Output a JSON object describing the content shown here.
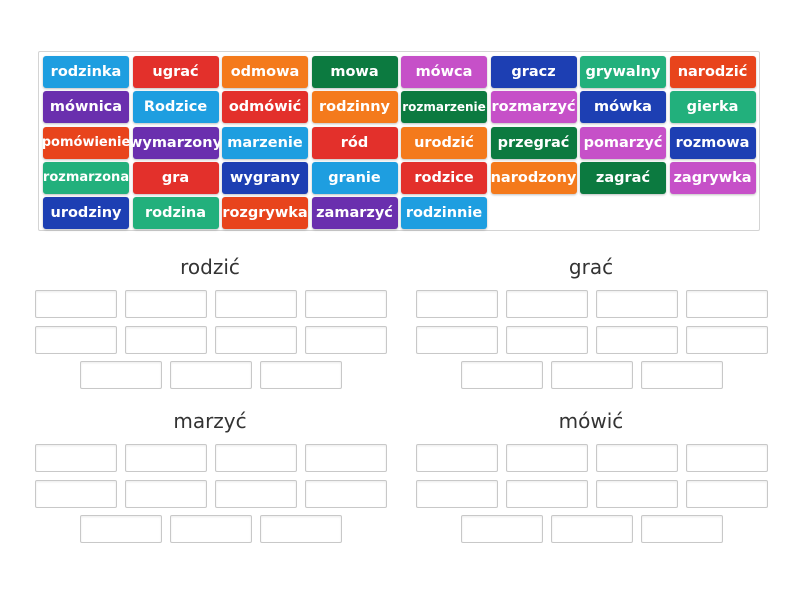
{
  "tiles": [
    {
      "text": "rodzinka",
      "color": "#1e9ee0"
    },
    {
      "text": "ugrać",
      "color": "#e3302b"
    },
    {
      "text": "odmowa",
      "color": "#f47a1c"
    },
    {
      "text": "mowa",
      "color": "#0c7a40"
    },
    {
      "text": "mówca",
      "color": "#c650c8"
    },
    {
      "text": "gracz",
      "color": "#1d3fb3"
    },
    {
      "text": "grywalny",
      "color": "#22b07c"
    },
    {
      "text": "narodzić",
      "color": "#e8441c"
    },
    {
      "text": "mównica",
      "color": "#6a2fae"
    },
    {
      "text": "Rodzice",
      "color": "#1e9ee0"
    },
    {
      "text": "odmówić",
      "color": "#e3302b"
    },
    {
      "text": "rodzinny",
      "color": "#f47a1c"
    },
    {
      "text": "rozmarzenie",
      "color": "#0c7a40"
    },
    {
      "text": "rozmarzyć",
      "color": "#c650c8"
    },
    {
      "text": "mówka",
      "color": "#1d3fb3"
    },
    {
      "text": "gierka",
      "color": "#22b07c"
    },
    {
      "text": "pomówienie",
      "color": "#e8441c"
    },
    {
      "text": "wymarzony",
      "color": "#6a2fae"
    },
    {
      "text": "marzenie",
      "color": "#1e9ee0"
    },
    {
      "text": "ród",
      "color": "#e3302b"
    },
    {
      "text": "urodzić",
      "color": "#f47a1c"
    },
    {
      "text": "przegrać",
      "color": "#0c7a40"
    },
    {
      "text": "pomarzyć",
      "color": "#c650c8"
    },
    {
      "text": "rozmowa",
      "color": "#1d3fb3"
    },
    {
      "text": "rozmarzona",
      "color": "#22b07c"
    },
    {
      "text": "gra",
      "color": "#e3302b"
    },
    {
      "text": "wygrany",
      "color": "#1d3fb3"
    },
    {
      "text": "granie",
      "color": "#1e9ee0"
    },
    {
      "text": "rodzice",
      "color": "#e3302b"
    },
    {
      "text": "narodzony",
      "color": "#f47a1c"
    },
    {
      "text": "zagrać",
      "color": "#0c7a40"
    },
    {
      "text": "zagrywka",
      "color": "#c650c8"
    },
    {
      "text": "urodziny",
      "color": "#1d3fb3"
    },
    {
      "text": "rodzina",
      "color": "#22b07c"
    },
    {
      "text": "rozgrywka",
      "color": "#e8441c"
    },
    {
      "text": "zamarzyć",
      "color": "#6a2fae"
    },
    {
      "text": "rodzinnie",
      "color": "#1e9ee0"
    }
  ],
  "groups": [
    {
      "title": "rodzić"
    },
    {
      "title": "grać"
    },
    {
      "title": "marzyć"
    },
    {
      "title": "mówić"
    }
  ]
}
